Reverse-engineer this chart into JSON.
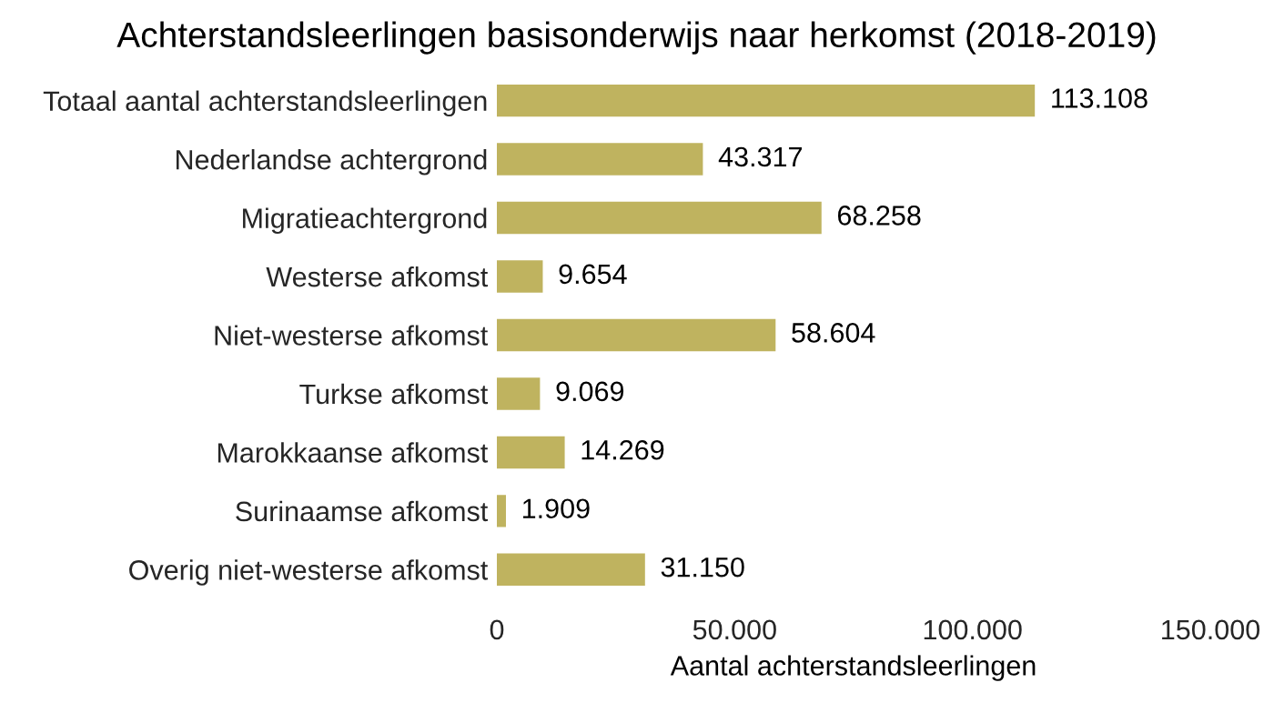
{
  "chart_data": {
    "type": "bar",
    "orientation": "horizontal",
    "title": "Achterstandsleerlingen basisonderwijs naar herkomst (2018-2019)",
    "xlabel": "Aantal achterstandsleerlingen",
    "categories": [
      "Totaal aantal achterstandsleerlingen",
      "Nederlandse achtergrond",
      "Migratieachtergrond",
      "Westerse afkomst",
      "Niet-westerse afkomst",
      "Turkse afkomst",
      "Marokkaanse afkomst",
      "Surinaamse afkomst",
      "Overig niet-westerse afkomst"
    ],
    "values": [
      113108,
      43317,
      68258,
      9654,
      58604,
      9069,
      14269,
      1909,
      31150
    ],
    "value_labels": [
      "113.108",
      "43.317",
      "68.258",
      "9.654",
      "58.604",
      "9.069",
      "14.269",
      "1.909",
      "31.150"
    ],
    "color": "#bfb35f",
    "xlim": [
      0,
      150000
    ],
    "xticks": [
      0,
      {
        "value": 50000,
        "label": "50.000"
      },
      {
        "value": 100000,
        "label": "100.000"
      },
      {
        "value": 150000,
        "label": "150.000"
      }
    ],
    "grid": false,
    "legend": false
  }
}
